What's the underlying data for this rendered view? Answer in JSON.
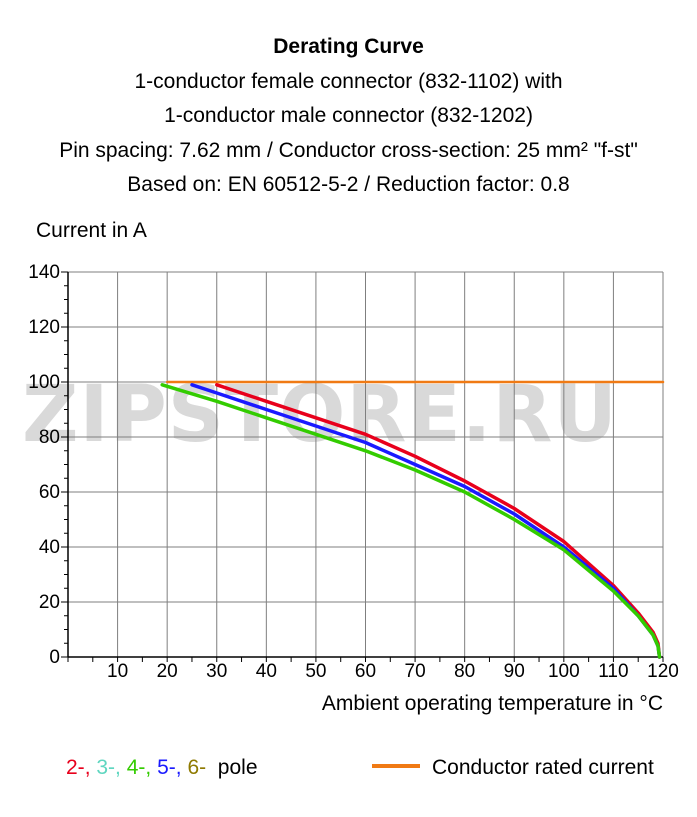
{
  "title_block": {
    "title": "Derating Curve",
    "line1": "1-conductor female connector (832-1102) with",
    "line2": "1-conductor male connector (832-1202)",
    "line3": "Pin spacing: 7.62 mm / Conductor cross-section: 25 mm² \"f-st\"",
    "line4": "Based on: EN 60512-5-2 / Reduction factor: 0.8"
  },
  "watermark": "ZIPSTORE.RU",
  "legend": {
    "poles": [
      {
        "text": "2-",
        "color": "#e8001c"
      },
      {
        "text": "3-",
        "color": "#5fd6c0"
      },
      {
        "text": "4-",
        "color": "#33cc00"
      },
      {
        "text": "5-",
        "color": "#1a1aff"
      },
      {
        "text": "6-",
        "color": "#8f7a00"
      }
    ],
    "poles_suffix": "pole",
    "rated_label": "Conductor rated current",
    "rated_color": "#f07a14"
  },
  "chart_data": {
    "type": "line",
    "xlabel": "Ambient operating temperature in °C",
    "ylabel": "Current in A",
    "xlim": [
      0,
      120
    ],
    "ylim": [
      0,
      140
    ],
    "xticks": [
      10,
      20,
      30,
      40,
      50,
      60,
      70,
      80,
      90,
      100,
      110,
      120
    ],
    "yticks": [
      0,
      20,
      40,
      60,
      80,
      100,
      120,
      140
    ],
    "grid": true,
    "series": [
      {
        "name": "Conductor rated current",
        "color": "#f07a14",
        "x": [
          20,
          120
        ],
        "y": [
          100,
          100
        ]
      },
      {
        "name": "2-",
        "color": "#e8001c",
        "x": [
          30,
          40,
          50,
          60,
          70,
          80,
          90,
          100,
          110,
          115,
          118,
          119,
          119.3
        ],
        "y": [
          99,
          93,
          87,
          81,
          73,
          64,
          54,
          42,
          26,
          16,
          9,
          5,
          0
        ]
      },
      {
        "name": "5-",
        "color": "#1a1aff",
        "x": [
          25,
          30,
          40,
          50,
          60,
          70,
          80,
          90,
          100,
          110,
          115,
          118,
          119,
          119.3
        ],
        "y": [
          99,
          96,
          90,
          84,
          78,
          70,
          62,
          52,
          40,
          25,
          15,
          8,
          4,
          0
        ]
      },
      {
        "name": "4-",
        "color": "#33cc00",
        "x": [
          19,
          30,
          40,
          50,
          60,
          70,
          80,
          90,
          100,
          110,
          115,
          118,
          119,
          119.3
        ],
        "y": [
          99,
          93,
          87,
          81,
          75,
          68,
          60,
          50,
          39,
          24,
          15,
          8,
          4,
          0
        ]
      }
    ]
  }
}
